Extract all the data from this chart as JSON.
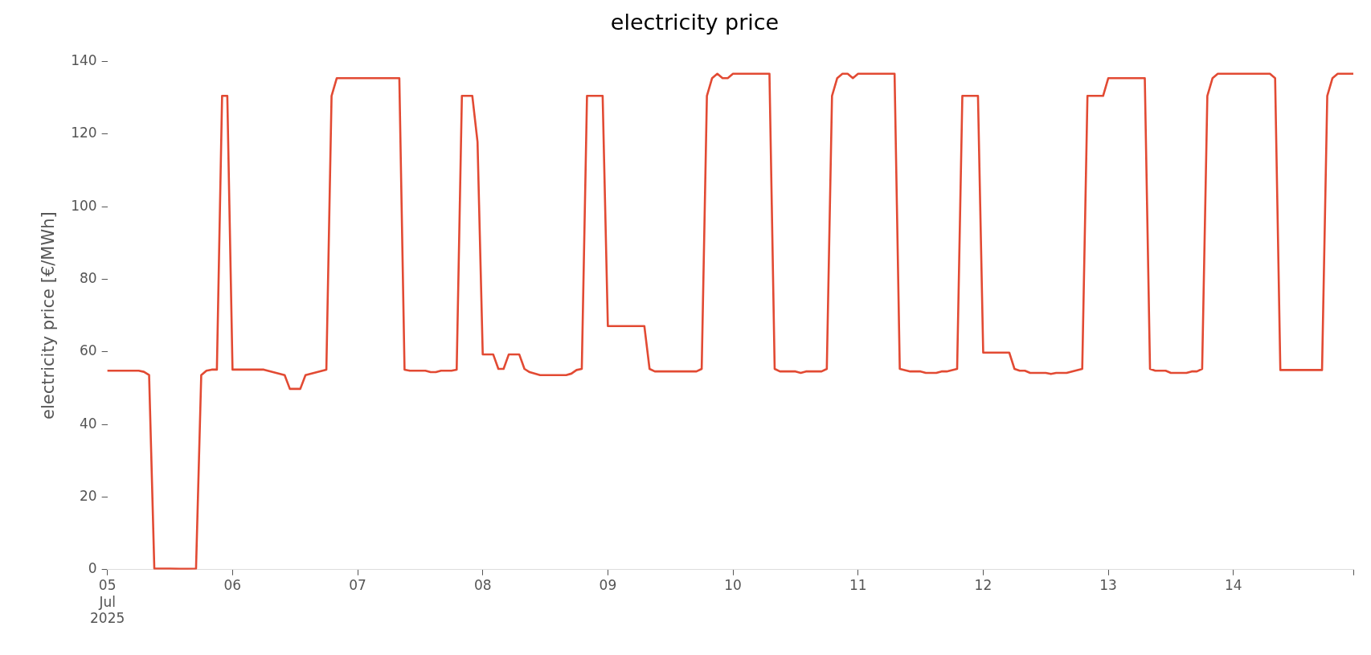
{
  "chart_data": {
    "type": "line",
    "title": "electricity price",
    "ylabel": "electricity price [€/MWh]",
    "xlim": [
      "2025-07-05T00:00",
      "2025-07-14T23:00"
    ],
    "xticks": [
      {
        "value": "2025-07-05",
        "label": "05\nJul\n2025"
      },
      {
        "value": "2025-07-06",
        "label": "06"
      },
      {
        "value": "2025-07-07",
        "label": "07"
      },
      {
        "value": "2025-07-08",
        "label": "08"
      },
      {
        "value": "2025-07-09",
        "label": "09"
      },
      {
        "value": "2025-07-10",
        "label": "10"
      },
      {
        "value": "2025-07-11",
        "label": "11"
      },
      {
        "value": "2025-07-12",
        "label": "12"
      },
      {
        "value": "2025-07-13",
        "label": "13"
      },
      {
        "value": "2025-07-14",
        "label": "14"
      },
      {
        "value": "2025-07-14T23:00",
        "label": null
      }
    ],
    "ylim": [
      0,
      140
    ],
    "yticks": [
      0,
      20,
      40,
      60,
      80,
      100,
      120,
      140
    ],
    "grid": false,
    "legend": false,
    "marker": "none",
    "line_style": "solid",
    "series": [
      {
        "color": "#e24a33",
        "x": [
          "2025-07-05T00:00",
          "2025-07-05T06:00",
          "2025-07-05T07:00",
          "2025-07-05T08:00",
          "2025-07-05T09:00",
          "2025-07-05T12:00",
          "2025-07-05T14:00",
          "2025-07-05T17:00",
          "2025-07-05T18:00",
          "2025-07-05T19:00",
          "2025-07-05T20:00",
          "2025-07-05T21:00",
          "2025-07-05T22:00",
          "2025-07-05T23:00",
          "2025-07-06T00:00",
          "2025-07-06T06:00",
          "2025-07-06T10:00",
          "2025-07-06T11:00",
          "2025-07-06T13:00",
          "2025-07-06T14:00",
          "2025-07-06T18:00",
          "2025-07-06T19:00",
          "2025-07-06T20:00",
          "2025-07-07T08:00",
          "2025-07-07T09:00",
          "2025-07-07T10:00",
          "2025-07-07T13:00",
          "2025-07-07T14:00",
          "2025-07-07T15:00",
          "2025-07-07T16:00",
          "2025-07-07T18:00",
          "2025-07-07T19:00",
          "2025-07-07T20:00",
          "2025-07-07T22:00",
          "2025-07-07T23:00",
          "2025-07-08T00:00",
          "2025-07-08T02:00",
          "2025-07-08T03:00",
          "2025-07-08T04:00",
          "2025-07-08T05:00",
          "2025-07-08T07:00",
          "2025-07-08T08:00",
          "2025-07-08T09:00",
          "2025-07-08T11:00",
          "2025-07-08T16:00",
          "2025-07-08T17:00",
          "2025-07-08T18:00",
          "2025-07-08T19:00",
          "2025-07-08T20:00",
          "2025-07-08T23:00",
          "2025-07-09T00:00",
          "2025-07-09T07:00",
          "2025-07-09T08:00",
          "2025-07-09T09:00",
          "2025-07-09T17:00",
          "2025-07-09T18:00",
          "2025-07-09T19:00",
          "2025-07-09T20:00",
          "2025-07-09T21:00",
          "2025-07-09T22:00",
          "2025-07-09T23:00",
          "2025-07-10T00:00",
          "2025-07-10T07:00",
          "2025-07-10T08:00",
          "2025-07-10T09:00",
          "2025-07-10T12:00",
          "2025-07-10T13:00",
          "2025-07-10T14:00",
          "2025-07-10T17:00",
          "2025-07-10T18:00",
          "2025-07-10T19:00",
          "2025-07-10T20:00",
          "2025-07-10T21:00",
          "2025-07-10T22:00",
          "2025-07-10T23:00",
          "2025-07-11T00:00",
          "2025-07-11T07:00",
          "2025-07-11T08:00",
          "2025-07-11T10:00",
          "2025-07-11T12:00",
          "2025-07-11T13:00",
          "2025-07-11T15:00",
          "2025-07-11T16:00",
          "2025-07-11T17:00",
          "2025-07-11T19:00",
          "2025-07-11T20:00",
          "2025-07-11T23:00",
          "2025-07-12T00:00",
          "2025-07-12T05:00",
          "2025-07-12T06:00",
          "2025-07-12T07:00",
          "2025-07-12T08:00",
          "2025-07-12T09:00",
          "2025-07-12T12:00",
          "2025-07-12T13:00",
          "2025-07-12T14:00",
          "2025-07-12T16:00",
          "2025-07-12T19:00",
          "2025-07-12T20:00",
          "2025-07-12T23:00",
          "2025-07-13T00:00",
          "2025-07-13T07:00",
          "2025-07-13T08:00",
          "2025-07-13T09:00",
          "2025-07-13T11:00",
          "2025-07-13T12:00",
          "2025-07-13T15:00",
          "2025-07-13T16:00",
          "2025-07-13T17:00",
          "2025-07-13T18:00",
          "2025-07-13T19:00",
          "2025-07-13T20:00",
          "2025-07-13T21:00",
          "2025-07-14T07:00",
          "2025-07-14T08:00",
          "2025-07-14T09:00",
          "2025-07-14T17:00",
          "2025-07-14T18:00",
          "2025-07-14T19:00",
          "2025-07-14T20:00",
          "2025-07-14T23:00"
        ],
        "values": [
          54.8,
          54.8,
          54.5,
          53.6,
          0.3,
          0.3,
          0.2,
          0.3,
          53.6,
          54.8,
          55.1,
          55.1,
          130.5,
          130.5,
          55.1,
          55.1,
          53.6,
          49.8,
          49.8,
          53.6,
          55.1,
          130.5,
          135.4,
          135.4,
          55.1,
          54.8,
          54.8,
          54.4,
          54.4,
          54.8,
          54.8,
          55.1,
          130.5,
          130.5,
          117.8,
          59.3,
          59.3,
          55.3,
          55.3,
          59.3,
          59.3,
          55.3,
          54.4,
          53.6,
          53.6,
          54.0,
          55.0,
          55.3,
          130.5,
          130.5,
          67.1,
          67.1,
          55.3,
          54.6,
          54.6,
          55.3,
          130.5,
          135.4,
          136.6,
          135.4,
          135.4,
          136.6,
          136.6,
          55.3,
          54.6,
          54.6,
          54.2,
          54.6,
          54.6,
          55.3,
          130.5,
          135.4,
          136.6,
          136.6,
          135.4,
          136.6,
          136.6,
          55.3,
          54.6,
          54.6,
          54.2,
          54.2,
          54.6,
          54.6,
          55.3,
          130.5,
          130.5,
          59.8,
          59.8,
          55.3,
          54.8,
          54.8,
          54.2,
          54.2,
          53.9,
          54.2,
          54.2,
          55.3,
          130.5,
          130.5,
          135.4,
          135.4,
          55.3,
          54.8,
          54.8,
          54.2,
          54.2,
          54.6,
          54.6,
          55.3,
          130.5,
          135.4,
          136.6,
          136.6,
          135.4,
          55.0,
          55.0,
          130.5,
          135.4,
          136.6,
          136.6
        ]
      }
    ]
  }
}
